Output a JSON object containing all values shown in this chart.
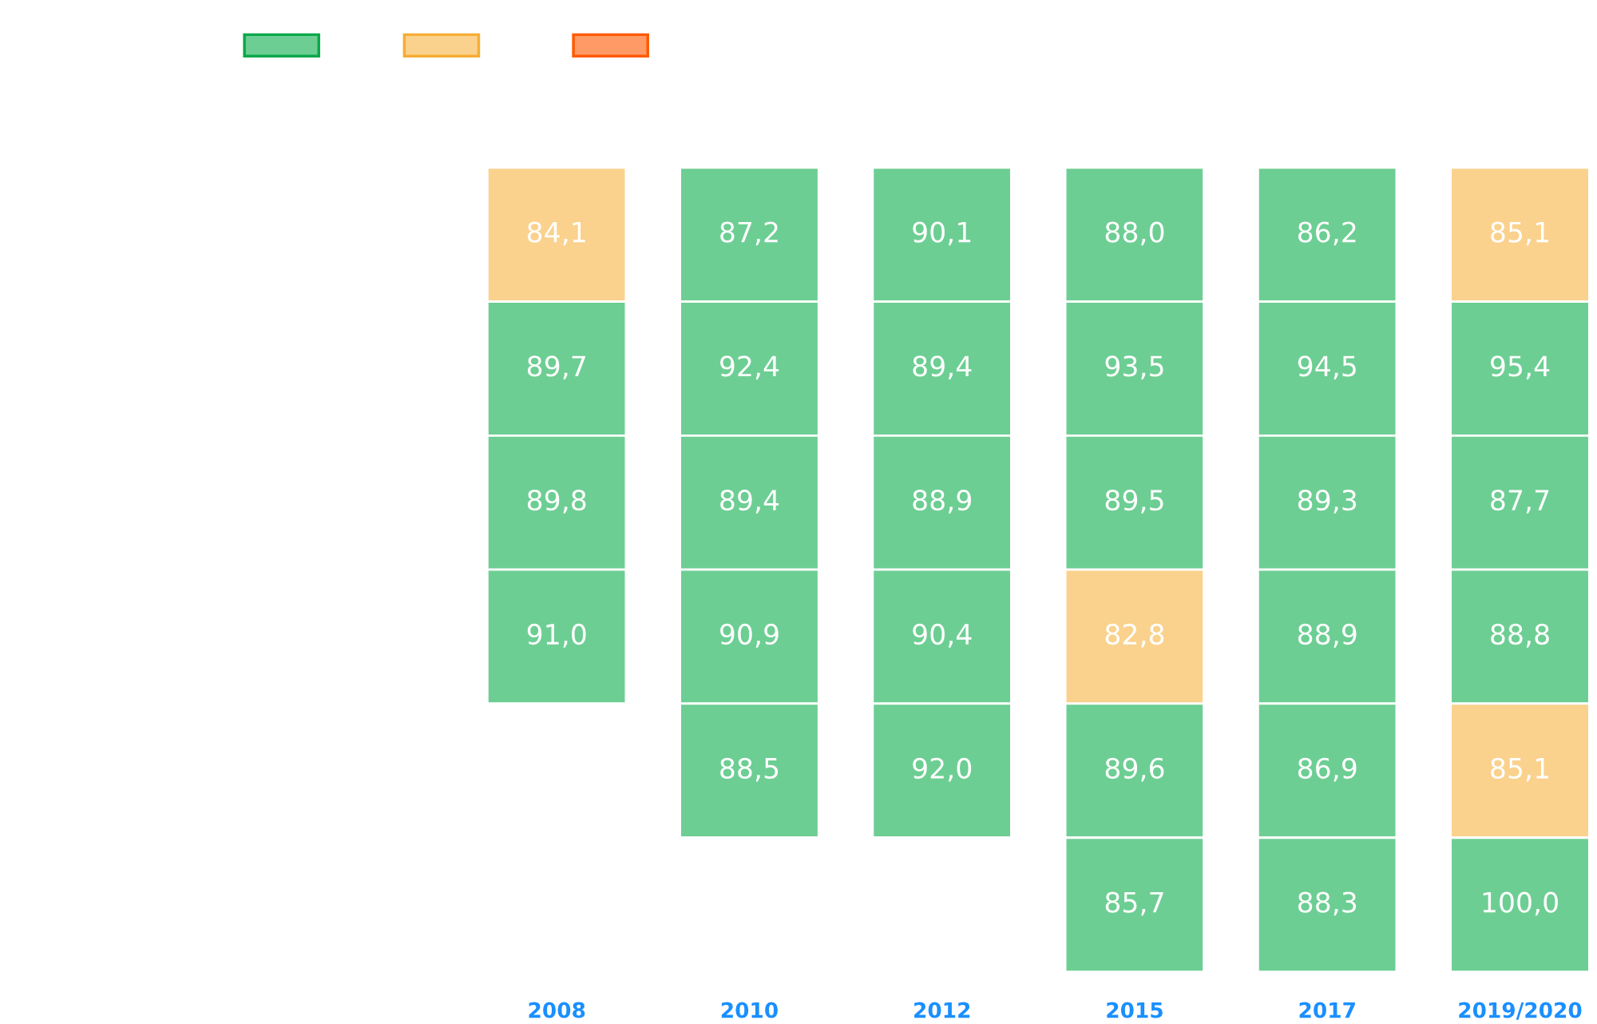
{
  "chart_data": {
    "type": "heatmap",
    "categories": [
      "2008",
      "2010",
      "2012",
      "2015",
      "2017",
      "2019/2020"
    ],
    "y_categories": [
      null,
      null,
      null,
      null,
      null,
      null
    ],
    "cells": [
      [
        84.1,
        87.2,
        90.1,
        88.0,
        86.2,
        85.1
      ],
      [
        89.7,
        92.4,
        89.4,
        93.5,
        94.5,
        95.4
      ],
      [
        89.8,
        89.4,
        88.9,
        89.5,
        89.3,
        87.7
      ],
      [
        91.0,
        90.9,
        90.4,
        82.8,
        88.9,
        88.8
      ],
      [
        null,
        88.5,
        92.0,
        89.6,
        86.9,
        85.1
      ],
      [
        null,
        null,
        null,
        85.7,
        88.3,
        100.0
      ]
    ],
    "cell_labels": [
      [
        "84,1",
        "87,2",
        "90,1",
        "88,0",
        "86,2",
        "85,1"
      ],
      [
        "89,7",
        "92,4",
        "89,4",
        "93,5",
        "94,5",
        "95,4"
      ],
      [
        "89,8",
        "89,4",
        "88,9",
        "89,5",
        "89,3",
        "87,7"
      ],
      [
        "91,0",
        "90,9",
        "90,4",
        "82,8",
        "88,9",
        "88,8"
      ],
      [
        null,
        "88,5",
        "92,0",
        "89,6",
        "86,9",
        "85,1"
      ],
      [
        null,
        null,
        null,
        "85,7",
        "88,3",
        "100,0"
      ]
    ],
    "colors": [
      [
        "#fad28d",
        "#6dce93",
        "#6dce93",
        "#6dce93",
        "#6dce93",
        "#fad28d"
      ],
      [
        "#6dce93",
        "#6dce93",
        "#6dce93",
        "#6dce93",
        "#6dce93",
        "#6dce93"
      ],
      [
        "#6dce93",
        "#6dce93",
        "#6dce93",
        "#6dce93",
        "#6dce93",
        "#6dce93"
      ],
      [
        "#6dce93",
        "#6dce93",
        "#6dce93",
        "#fad28d",
        "#6dce93",
        "#6dce93"
      ],
      [
        null,
        "#6dce93",
        "#6dce93",
        "#6dce93",
        "#6dce93",
        "#fad28d"
      ],
      [
        null,
        null,
        null,
        "#6dce93",
        "#6dce93",
        "#6dce93"
      ]
    ]
  }
}
